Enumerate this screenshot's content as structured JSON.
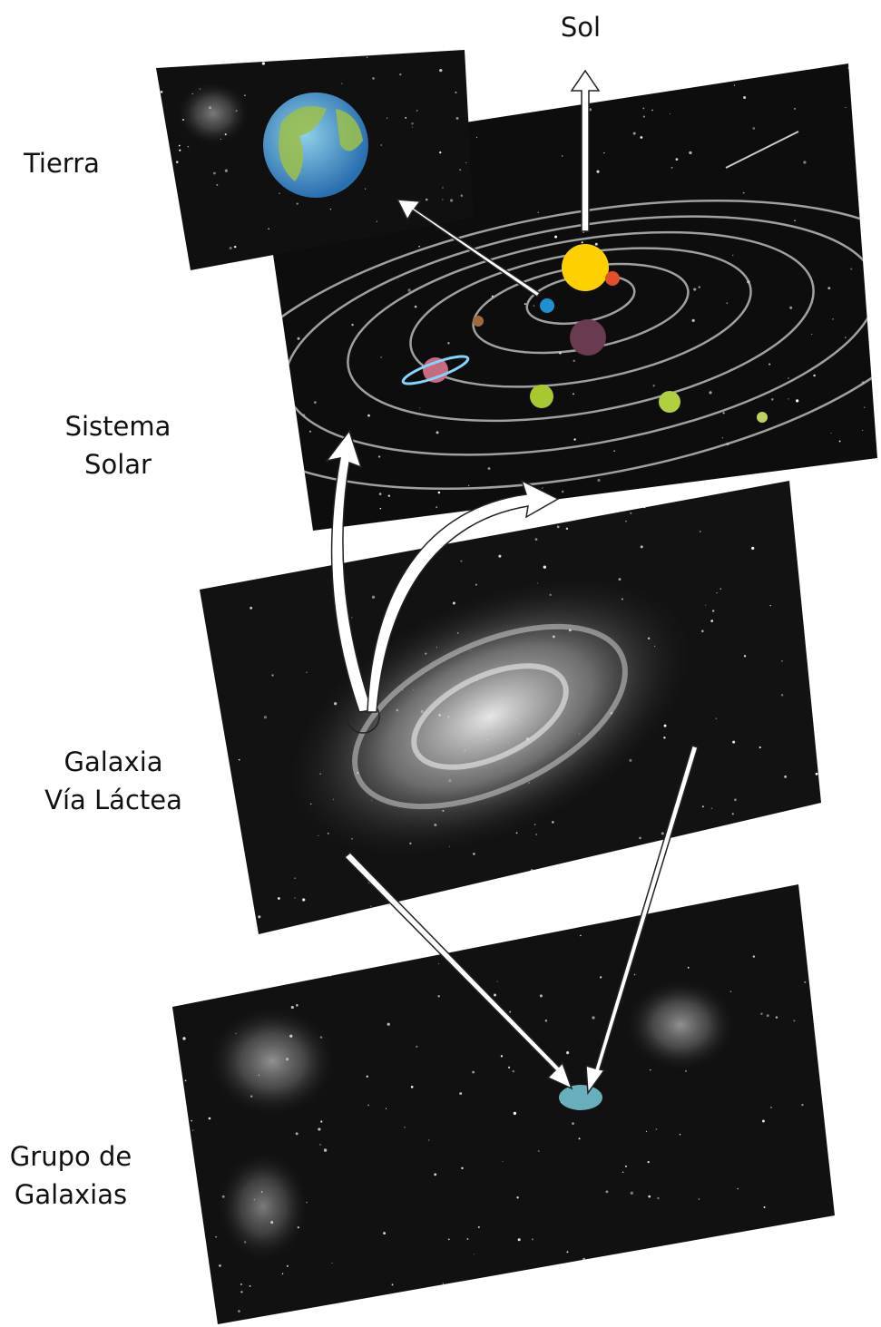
{
  "labels": {
    "sol": [
      "Sol"
    ],
    "tierra": [
      "Tierra"
    ],
    "sistema_solar": [
      "Sistema",
      "Solar"
    ],
    "galaxia": [
      "Galaxia",
      "Vía Láctea"
    ],
    "grupo": [
      "Grupo de",
      "Galaxias"
    ]
  }
}
